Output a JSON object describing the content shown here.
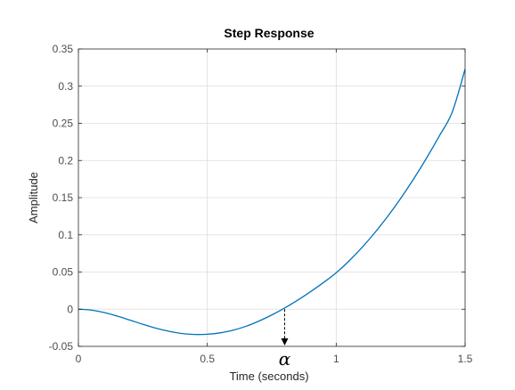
{
  "chart_data": {
    "type": "line",
    "title": "Step Response",
    "xlabel": "Time (seconds)",
    "ylabel": "Amplitude",
    "xlim": [
      0,
      1.5
    ],
    "ylim": [
      -0.05,
      0.35
    ],
    "x_ticks": [
      0,
      0.5,
      1,
      1.5
    ],
    "x_tick_labels": [
      "0",
      "0.5",
      "1",
      "1.5"
    ],
    "y_ticks": [
      -0.05,
      0,
      0.05,
      0.1,
      0.15,
      0.2,
      0.25,
      0.3,
      0.35
    ],
    "y_tick_labels": [
      "-0.05",
      "0",
      "0.05",
      "0.1",
      "0.15",
      "0.2",
      "0.25",
      "0.3",
      "0.35"
    ],
    "grid": true,
    "series": [
      {
        "color": "#0072bd",
        "x": [
          0,
          0.05,
          0.1,
          0.15,
          0.2,
          0.25,
          0.3,
          0.35,
          0.4,
          0.45,
          0.5,
          0.55,
          0.6,
          0.65,
          0.7,
          0.75,
          0.8,
          0.85,
          0.9,
          0.95,
          1.0,
          1.05,
          1.1,
          1.15,
          1.2,
          1.25,
          1.3,
          1.35,
          1.4,
          1.45,
          1.5
        ],
        "y": [
          0,
          -0.0012,
          -0.0045,
          -0.0092,
          -0.0147,
          -0.0203,
          -0.0255,
          -0.0297,
          -0.0326,
          -0.034,
          -0.0337,
          -0.0318,
          -0.0283,
          -0.023,
          -0.016,
          -0.0078,
          0.0016,
          0.012,
          0.0234,
          0.0357,
          0.049,
          0.065,
          0.083,
          0.103,
          0.125,
          0.149,
          0.175,
          0.203,
          0.233,
          0.265,
          0.323
        ]
      }
    ],
    "annotations": [
      {
        "text": "α",
        "x": 0.8,
        "y": 0,
        "arrow": "down",
        "style": "dashed"
      }
    ]
  }
}
